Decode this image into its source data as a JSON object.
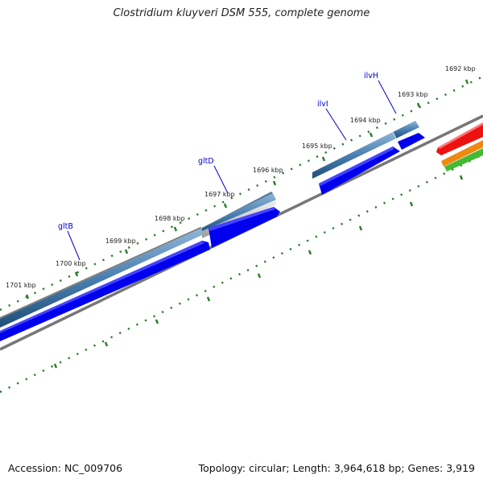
{
  "title": "Clostridium kluyveri DSM 555, complete genome",
  "footer": {
    "accession": "Accession: NC_009706",
    "topology": "Topology: circular; Length: 3,964,618 bp; Genes: 3,919"
  },
  "ruler_labels": [
    "1692 kbp",
    "1693 kbp",
    "1694 kbp",
    "1695 kbp",
    "1696 kbp",
    "1697 kbp",
    "1698 kbp",
    "1699 kbp",
    "1700 kbp",
    "1701 kbp"
  ],
  "gene_labels": [
    "ilvH",
    "ilvI",
    "gltD",
    "gltB"
  ],
  "colors": {
    "gene_blue": "#4a7fb0",
    "cds_blue": "#0000ee",
    "tick_green": "#2a7a2a",
    "backbone_gray": "#777777",
    "feature_red": "#ee1111",
    "feature_orange": "#ee8811",
    "feature_green": "#44bb33"
  }
}
